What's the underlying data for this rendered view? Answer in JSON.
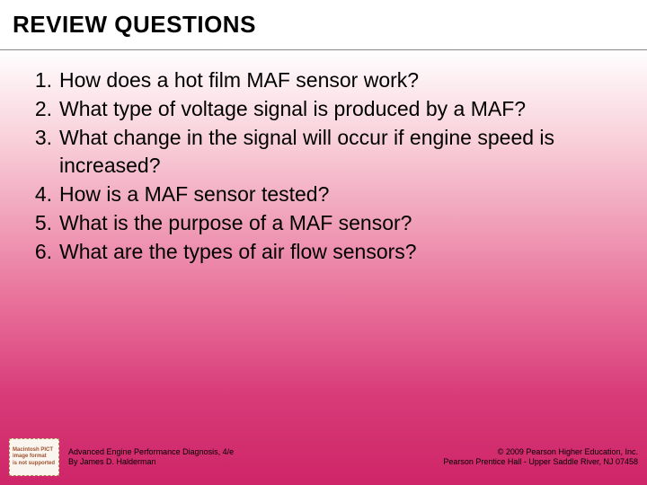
{
  "slide": {
    "title": "REVIEW QUESTIONS",
    "title_fontsize": 26,
    "title_color": "#000000",
    "body_fontsize": 23,
    "body_color": "#000000",
    "background_gradient": [
      "#ffffff",
      "#f8cdd8",
      "#e8719a",
      "#d83a78",
      "#ce2568"
    ],
    "divider_color": "#888888"
  },
  "questions": [
    "How does a hot film MAF sensor work?",
    "What type of voltage signal is produced by a MAF?",
    "What change in the signal will occur if engine speed is increased?",
    "How is a MAF sensor tested?",
    "What is the purpose of a MAF sensor?",
    "What are the types of air flow sensors?"
  ],
  "footer": {
    "placeholder": {
      "line1": "Macintosh PICT",
      "line2": "image format",
      "line3": "is not supported"
    },
    "book_title": "Advanced Engine Performance Diagnosis, 4/e",
    "author": "By James D. Halderman",
    "copyright_line1": "© 2009 Pearson Higher Education, Inc.",
    "copyright_line2": "Pearson Prentice Hall - Upper Saddle River, NJ 07458",
    "footer_fontsize": 9,
    "footer_color": "#000000"
  }
}
